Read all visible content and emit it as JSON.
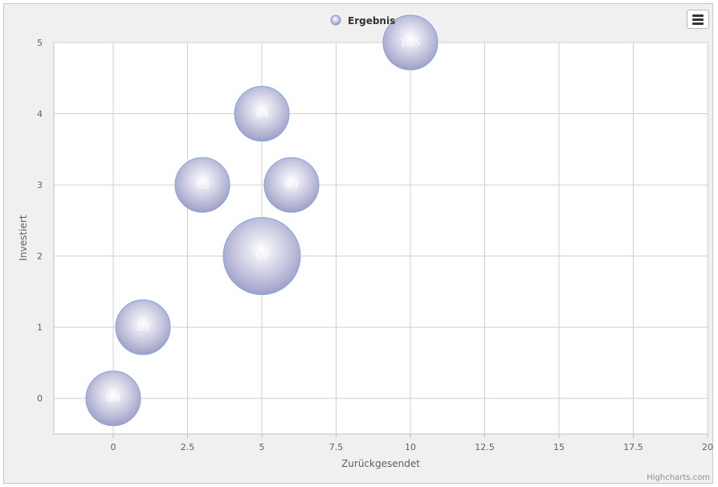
{
  "chart_data": {
    "type": "bubble",
    "xlabel": "Zurückgesendet",
    "ylabel": "Investiert",
    "xlim": [
      -2,
      20
    ],
    "ylim": [
      -0.5,
      5
    ],
    "xticks": [
      0,
      2.5,
      5,
      7.5,
      10,
      12.5,
      15,
      17.5,
      20
    ],
    "xtick_labels": [
      "0",
      "2.5",
      "5",
      "7.5",
      "10",
      "12.5",
      "15",
      "17.5",
      "20"
    ],
    "yticks": [
      0,
      1,
      2,
      3,
      4,
      5
    ],
    "ytick_labels": [
      "0",
      "1",
      "2",
      "3",
      "4",
      "5"
    ],
    "grid": true,
    "legend": "top-center",
    "series": [
      {
        "name": "Ergebnis",
        "color": "#9a9ac8",
        "points": [
          {
            "x": 0,
            "y": 0,
            "z": 1,
            "label": "0/0"
          },
          {
            "x": 1,
            "y": 1,
            "z": 1,
            "label": "1/1"
          },
          {
            "x": 3,
            "y": 3,
            "z": 1,
            "label": "3/3"
          },
          {
            "x": 5,
            "y": 2,
            "z": 2,
            "label": "5/2"
          },
          {
            "x": 5,
            "y": 4,
            "z": 1,
            "label": "5/4"
          },
          {
            "x": 6,
            "y": 3,
            "z": 1,
            "label": "6/3"
          },
          {
            "x": 10,
            "y": 5,
            "z": 1,
            "label": "10/5"
          }
        ]
      }
    ]
  },
  "credits": "Highcharts.com",
  "menu": {
    "icon": "hamburger-menu-icon"
  }
}
